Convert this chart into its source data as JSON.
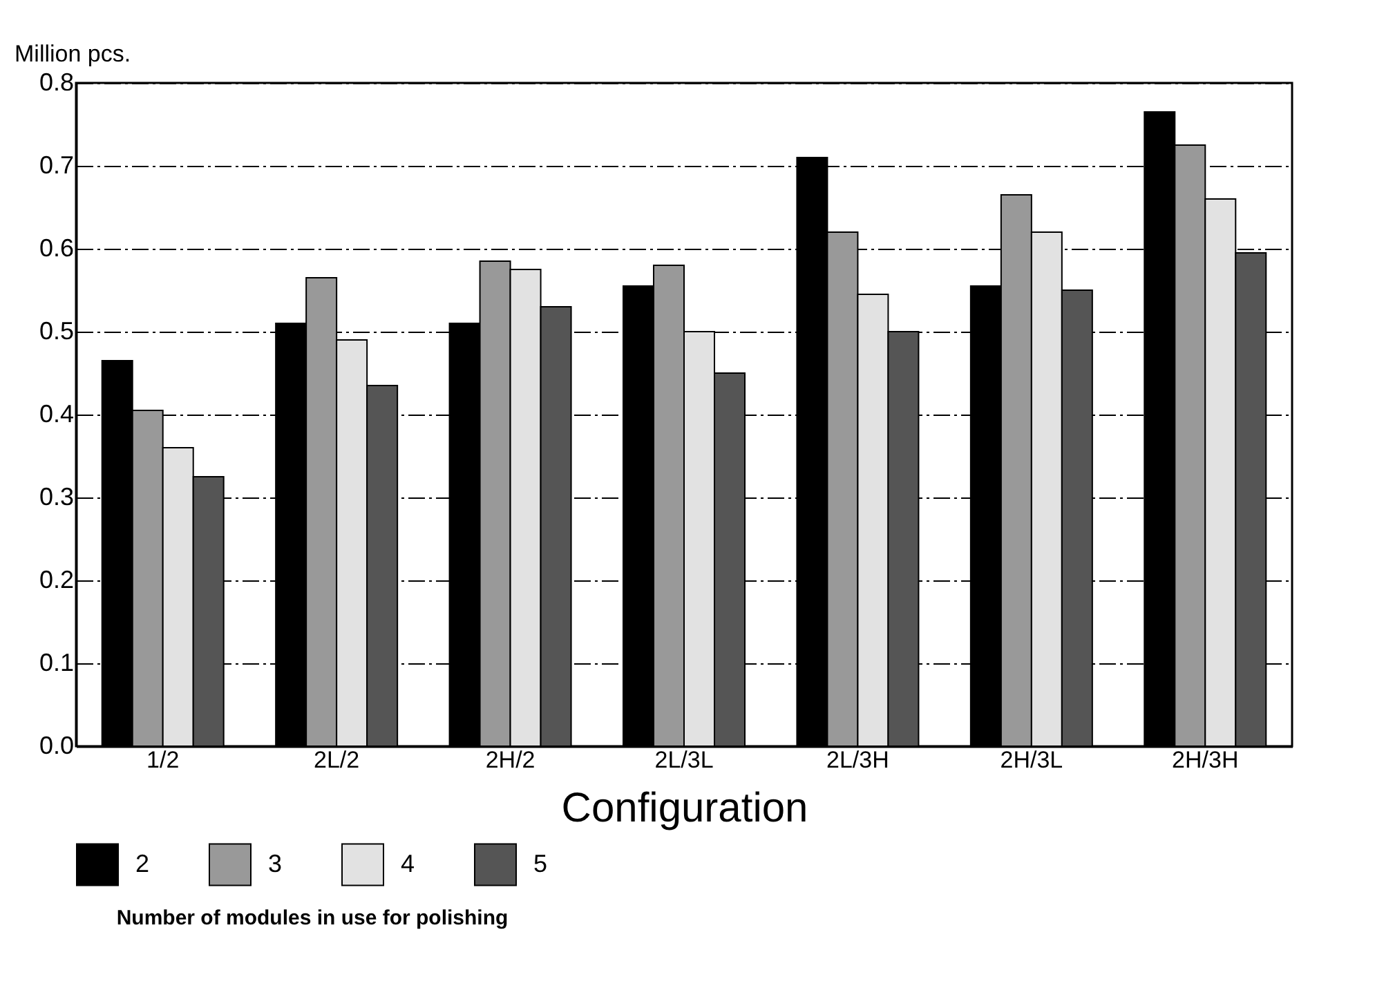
{
  "chart_data": {
    "type": "bar",
    "xlabel": "Configuration",
    "ylabel": "Million pcs.",
    "legend_title": "Number of modules in use for polishing",
    "legend": "bottom",
    "grid": "y",
    "categories": [
      "1/2",
      "2L/2",
      "2H/2",
      "2L/3L",
      "2L/3H",
      "2H/3L",
      "2H/3H"
    ],
    "ylim": [
      0,
      0.8
    ],
    "yticks": [
      {
        "value": 0,
        "label": "0.0"
      },
      0.1,
      0.2,
      0.3,
      0.4,
      0.5,
      0.6,
      0.7,
      0.8
    ],
    "series": [
      {
        "name": "2",
        "color": "#000000",
        "values": [
          0.465,
          0.51,
          0.51,
          0.555,
          0.71,
          0.555,
          0.765
        ]
      },
      {
        "name": "3",
        "color": "#999999",
        "values": [
          0.405,
          0.565,
          0.585,
          0.58,
          0.62,
          0.665,
          0.725
        ]
      },
      {
        "name": "4",
        "color": "#e2e2e2",
        "values": [
          0.36,
          0.49,
          0.575,
          0.5,
          0.545,
          0.62,
          0.66
        ]
      },
      {
        "name": "5",
        "color": "#555555",
        "values": [
          0.325,
          0.435,
          0.53,
          0.45,
          0.5,
          0.55,
          0.595
        ]
      }
    ]
  }
}
